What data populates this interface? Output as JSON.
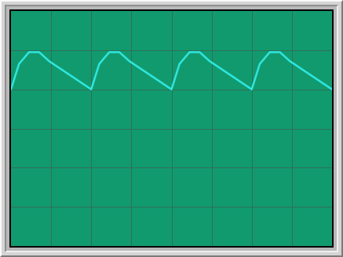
{
  "colors": {
    "screen_background": "#129a6f",
    "grid": "#2f6f58",
    "trace": "#2ee6de"
  },
  "display": {
    "divisions_x": 8,
    "divisions_y": 6
  },
  "chart_data": {
    "type": "line",
    "title": "",
    "xlabel": "",
    "ylabel": "",
    "grid": true,
    "xlim": [
      0,
      8
    ],
    "ylim": [
      -3,
      3
    ],
    "series": [
      {
        "x": [
          0,
          0.2,
          0.45,
          0.7,
          0.95,
          2.0,
          2.2,
          2.45,
          2.7,
          2.95,
          4.0,
          4.2,
          4.45,
          4.7,
          4.95,
          6.0,
          6.2,
          6.45,
          6.7,
          6.95,
          8.0
        ],
        "values": [
          1.0,
          1.65,
          1.95,
          1.95,
          1.72,
          1.0,
          1.65,
          1.95,
          1.95,
          1.72,
          1.0,
          1.65,
          1.95,
          1.95,
          1.72,
          1.0,
          1.65,
          1.95,
          1.95,
          1.72,
          1.0
        ]
      }
    ]
  }
}
